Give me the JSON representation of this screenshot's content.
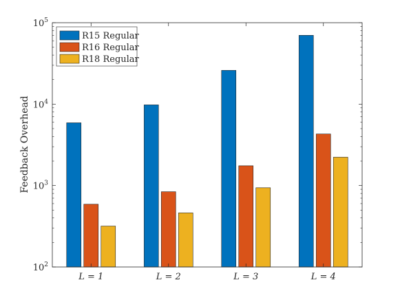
{
  "chart_data": {
    "type": "bar",
    "yscale": "log",
    "ylim": [
      100,
      100000
    ],
    "ylabel": "Feedback Overhead",
    "xlabel": "",
    "categories": [
      "L = 1",
      "L = 2",
      "L = 3",
      "L = 4"
    ],
    "yticks": [
      {
        "value": 100,
        "base": "10",
        "exp": "2"
      },
      {
        "value": 1000,
        "base": "10",
        "exp": "3"
      },
      {
        "value": 10000,
        "base": "10",
        "exp": "4"
      },
      {
        "value": 100000,
        "base": "10",
        "exp": "5"
      }
    ],
    "series": [
      {
        "name": "R15 Regular",
        "color": "#0072BD",
        "values": [
          5900,
          9800,
          26000,
          70000
        ]
      },
      {
        "name": "R16 Regular",
        "color": "#D95319",
        "values": [
          590,
          840,
          1750,
          4300
        ]
      },
      {
        "name": "R18 Regular",
        "color": "#EDB120",
        "values": [
          318,
          462,
          940,
          2230
        ]
      }
    ],
    "legend": "top-left",
    "grid": false
  }
}
